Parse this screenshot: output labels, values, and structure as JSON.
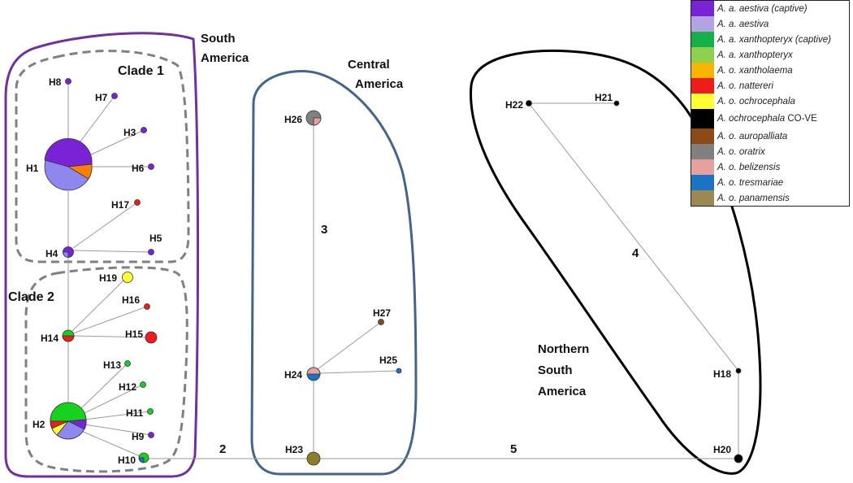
{
  "regions": {
    "south_america": [
      "South",
      "America"
    ],
    "central_america": [
      "Central",
      "America"
    ],
    "northern_south_america": [
      "Northern",
      "South",
      "America"
    ]
  },
  "clades": {
    "clade1": "Clade 1",
    "clade2": "Clade 2"
  },
  "edge_labels": {
    "e_h24_h26": "3",
    "e_h18_h22": "4",
    "e_sa_ca": "2",
    "e_ca_nsa": "5"
  },
  "haplotypes": {
    "H1": "H1",
    "H2": "H2",
    "H3": "H3",
    "H4": "H4",
    "H5": "H5",
    "H6": "H6",
    "H7": "H7",
    "H8": "H8",
    "H9": "H9",
    "H10": "H10",
    "H11": "H11",
    "H12": "H12",
    "H13": "H13",
    "H14": "H14",
    "H15": "H15",
    "H16": "H16",
    "H17": "H17",
    "H18": "H18",
    "H19": "H19",
    "H20": "H20",
    "H21": "H21",
    "H22": "H22",
    "H23": "H23",
    "H24": "H24",
    "H25": "H25",
    "H26": "H26",
    "H27": "H27"
  },
  "legend": [
    {
      "label": "A. a. aestiva (captive)",
      "color": "#7a22d6"
    },
    {
      "label": "A. a. aestiva",
      "color": "#b2a4e0"
    },
    {
      "label": "A. a. xanthopteryx (captive)",
      "color": "#16b04a"
    },
    {
      "label": "A. a. xanthopteryx",
      "color": "#8fd14f"
    },
    {
      "label": "A. o. xantholaema",
      "color": "#f7b500"
    },
    {
      "label": "A. o. nattereri",
      "color": "#ee1c1c"
    },
    {
      "label": "A. o. ochrocephala",
      "color": "#ffff33"
    },
    {
      "label": "A. ochrocephala",
      "suffix": "CO-VE",
      "color": "#000000"
    },
    {
      "label": "A. o. auropalliata",
      "color": "#8b4a14"
    },
    {
      "label": "A. o. oratrix",
      "color": "#808080"
    },
    {
      "label": "A. o. belizensis",
      "color": "#e6a0a0"
    },
    {
      "label": "A. o. tresmariae",
      "color": "#1a73c4"
    },
    {
      "label": "A. o. panamensis",
      "color": "#9a8a52"
    }
  ],
  "colors": {
    "aestiva_captive": "#7a22d6",
    "aestiva": "#8d87ee",
    "xanthopteryx_captive": "#16d11e",
    "xanthopteryx": "#8fd14f",
    "xantholaema": "#ff7f00",
    "nattereri": "#ee1c1c",
    "ochrocephala": "#ffff33",
    "co_ve": "#000000",
    "auropalliata": "#8b4a14",
    "oratrix": "#808080",
    "belizensis": "#e6a0a0",
    "tresmariae": "#1a73c4",
    "panamensis": "#8a7e2a",
    "south_america_outline": "#7030a0",
    "central_america_outline": "#44648a",
    "clade_outline": "#808080"
  }
}
